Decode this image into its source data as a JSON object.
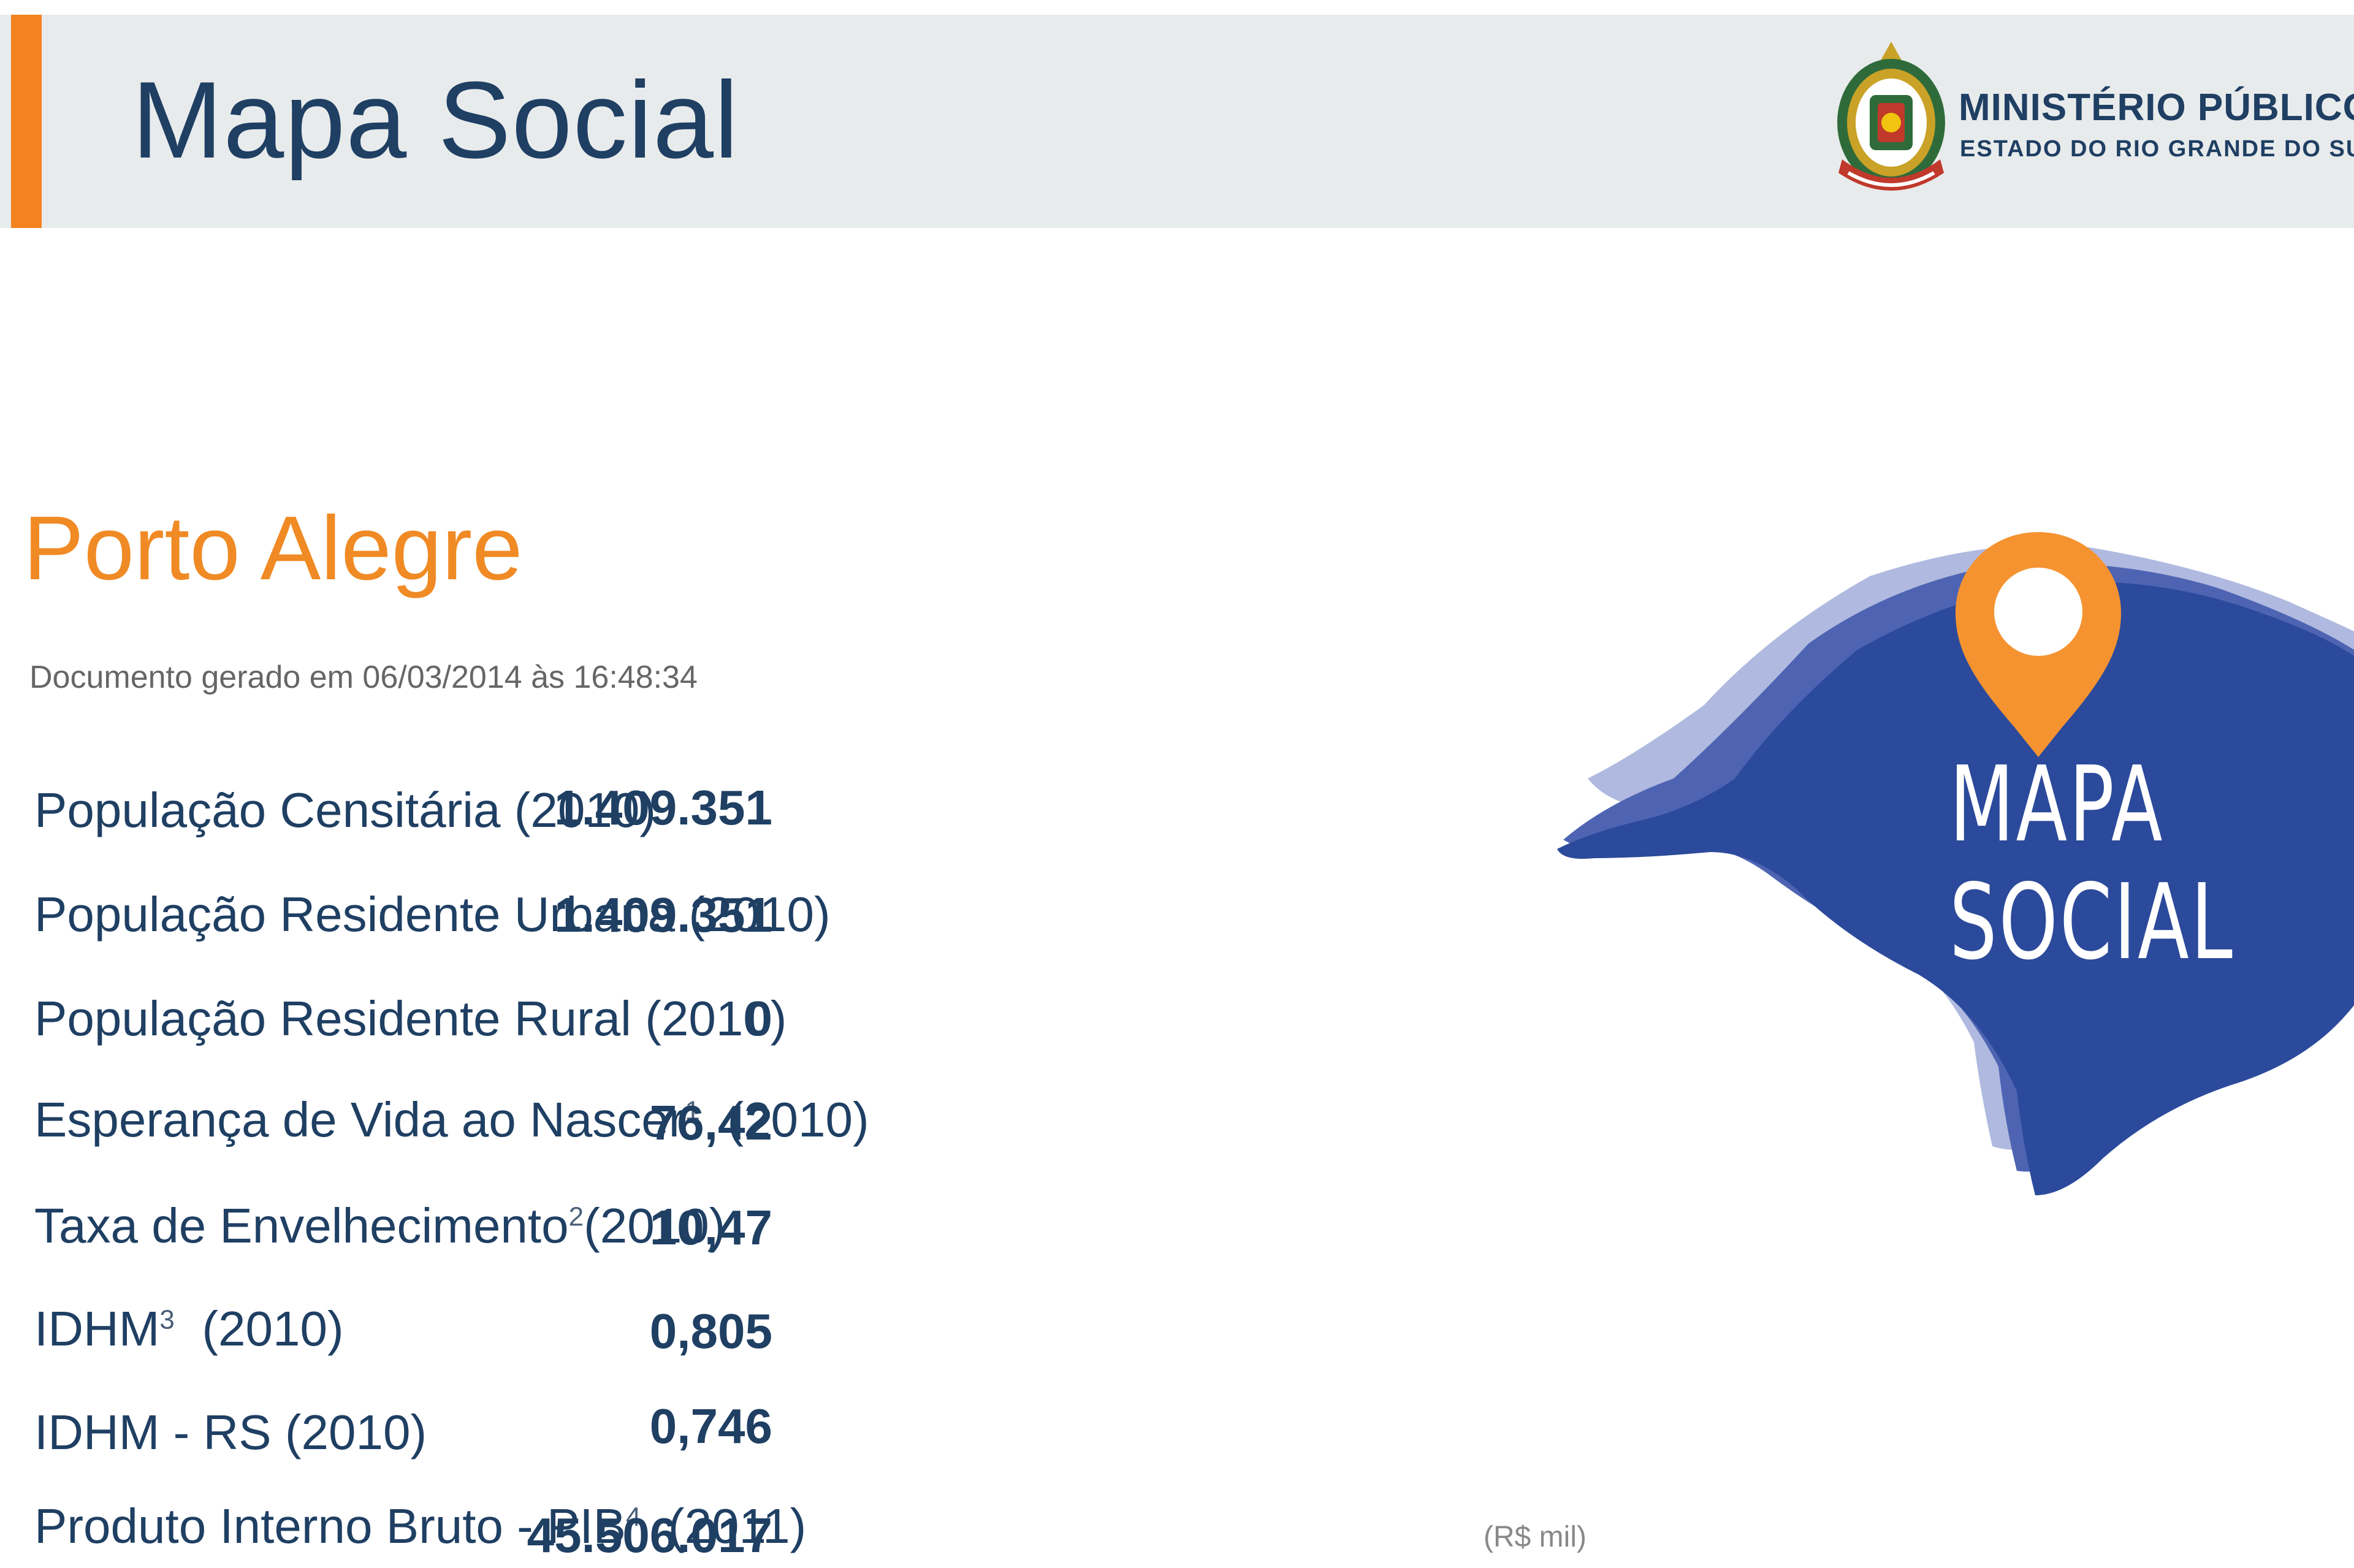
{
  "header": {
    "title": "Mapa Social",
    "org_name": "MINISTÉRIO PÚBLICO",
    "org_subtitle": "ESTADO DO RIO GRANDE DO SUL",
    "accent_color": "#f58220",
    "title_color": "#1f3f63"
  },
  "city": {
    "name": "Porto Alegre",
    "generated_text": "Documento gerado em 06/03/2014 às 16:48:34"
  },
  "stats": [
    {
      "label": "População Censitária",
      "note": "",
      "year": "(2010)",
      "value": "1.409.351",
      "unit": ""
    },
    {
      "label": "População Residente Urbana",
      "note": "",
      "year": "(2010)",
      "value": "1.409.351",
      "unit": ""
    },
    {
      "label": "População Residente Rural",
      "note": "",
      "year": "(2010)",
      "value": "0",
      "unit": ""
    },
    {
      "label": "Esperança de Vida ao Nascer",
      "note": "1",
      "year": "(2010)",
      "value": "76,42",
      "unit": ""
    },
    {
      "label": "Taxa de Envelhecimento",
      "note": "2",
      "year": "(2010)",
      "value": "10,47",
      "unit": ""
    },
    {
      "label": "IDHM",
      "note": "3",
      "year": "(2010)",
      "value": "0,805",
      "unit": ""
    },
    {
      "label": "IDHM - RS",
      "note": "",
      "year": "(2010)",
      "value": "0,746",
      "unit": ""
    },
    {
      "label": "Produto Interno Bruto - PIB",
      "note": "4",
      "year": "(2011)",
      "value": "45.506.017",
      "unit": "(R$ mil)"
    }
  ],
  "map_logo": {
    "line1": "MAPA",
    "line2": "SOCIAL",
    "icon": "map-pin-icon",
    "shape_color": "#2c4a9b",
    "pin_color": "#f59331"
  }
}
